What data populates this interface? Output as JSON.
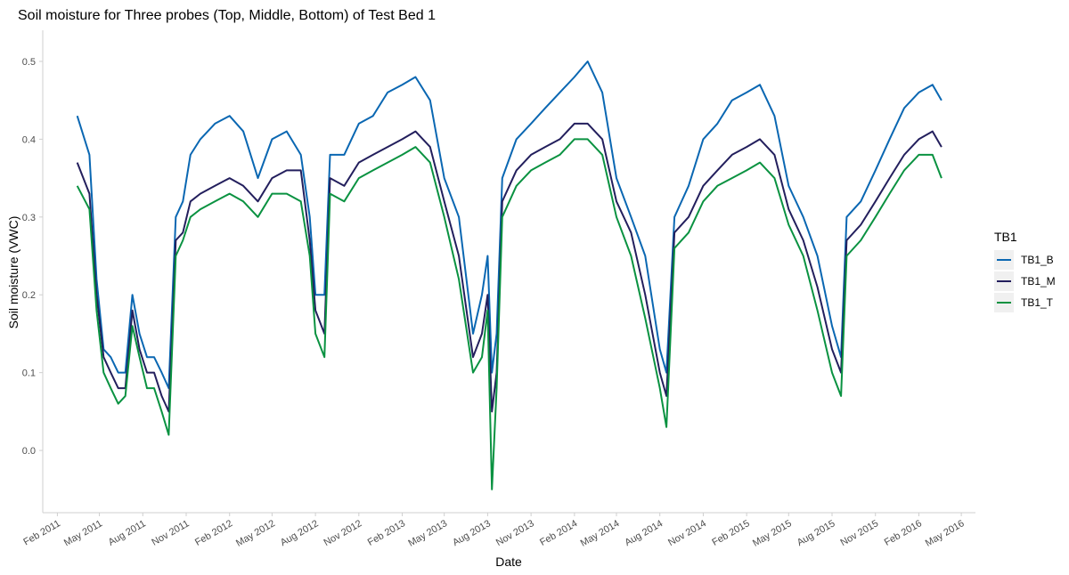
{
  "colors": {
    "TB1_B": "#0a67b2",
    "TB1_M": "#231f5d",
    "TB1_T": "#0a9241",
    "axis": "#cfcfcf",
    "legend_bg": "#f0f0f0"
  },
  "chart_data": {
    "type": "line",
    "title": "Soil moisture for Three probes (Top, Middle, Bottom) of Test Bed 1",
    "xlabel": "Date",
    "ylabel": "Soil moisture (VWC)",
    "xlim": [
      "2011-01-01",
      "2016-05-31"
    ],
    "ylim": [
      -0.08,
      0.54
    ],
    "y_ticks": [
      0.0,
      0.1,
      0.2,
      0.3,
      0.4,
      0.5
    ],
    "y_tick_labels": [
      "0.0",
      "0.1",
      "0.2",
      "0.3",
      "0.4",
      "0.5"
    ],
    "x_ticks": [
      "2011-02-01",
      "2011-05-01",
      "2011-08-01",
      "2011-11-01",
      "2012-02-01",
      "2012-05-01",
      "2012-08-01",
      "2012-11-01",
      "2013-02-01",
      "2013-05-01",
      "2013-08-01",
      "2013-11-01",
      "2014-02-01",
      "2014-05-01",
      "2014-08-01",
      "2014-11-01",
      "2015-02-01",
      "2015-05-01",
      "2015-08-01",
      "2015-11-01",
      "2016-02-01",
      "2016-05-01"
    ],
    "x_tick_labels": [
      "Feb 2011",
      "May 2011",
      "Aug 2011",
      "Nov 2011",
      "Feb 2012",
      "May 2012",
      "Aug 2012",
      "Nov 2012",
      "Feb 2013",
      "May 2013",
      "Aug 2013",
      "Nov 2013",
      "Feb 2014",
      "May 2014",
      "Aug 2014",
      "Nov 2014",
      "Feb 2015",
      "May 2015",
      "Aug 2015",
      "Nov 2015",
      "Feb 2016",
      "May 2016"
    ],
    "grid": false,
    "legend": {
      "title": "TB1",
      "position": "right",
      "entries": [
        "TB1_B",
        "TB1_M",
        "TB1_T"
      ]
    },
    "x": [
      "2011-03-15",
      "2011-04-10",
      "2011-04-25",
      "2011-05-10",
      "2011-05-25",
      "2011-06-10",
      "2011-06-25",
      "2011-07-10",
      "2011-07-25",
      "2011-08-10",
      "2011-08-25",
      "2011-09-10",
      "2011-09-25",
      "2011-10-10",
      "2011-10-25",
      "2011-11-10",
      "2011-12-01",
      "2012-01-01",
      "2012-02-01",
      "2012-03-01",
      "2012-04-01",
      "2012-05-01",
      "2012-06-01",
      "2012-07-01",
      "2012-07-20",
      "2012-08-01",
      "2012-08-20",
      "2012-09-01",
      "2012-10-01",
      "2012-11-01",
      "2012-12-01",
      "2013-01-01",
      "2013-02-01",
      "2013-03-01",
      "2013-04-01",
      "2013-05-01",
      "2013-06-01",
      "2013-07-01",
      "2013-07-20",
      "2013-08-01",
      "2013-08-10",
      "2013-08-20",
      "2013-09-01",
      "2013-10-01",
      "2013-11-01",
      "2013-12-01",
      "2014-01-01",
      "2014-02-01",
      "2014-03-01",
      "2014-04-01",
      "2014-05-01",
      "2014-06-01",
      "2014-07-01",
      "2014-08-01",
      "2014-08-15",
      "2014-09-01",
      "2014-10-01",
      "2014-11-01",
      "2014-12-01",
      "2015-01-01",
      "2015-02-01",
      "2015-03-01",
      "2015-04-01",
      "2015-05-01",
      "2015-06-01",
      "2015-07-01",
      "2015-08-01",
      "2015-08-20",
      "2015-09-01",
      "2015-10-01",
      "2015-11-01",
      "2015-12-01",
      "2016-01-01",
      "2016-02-01",
      "2016-03-01",
      "2016-03-20"
    ],
    "series": [
      {
        "name": "TB1_B",
        "values": [
          0.43,
          0.38,
          0.22,
          0.13,
          0.12,
          0.1,
          0.1,
          0.2,
          0.15,
          0.12,
          0.12,
          0.1,
          0.08,
          0.3,
          0.32,
          0.38,
          0.4,
          0.42,
          0.43,
          0.41,
          0.35,
          0.4,
          0.41,
          0.38,
          0.3,
          0.2,
          0.2,
          0.38,
          0.38,
          0.42,
          0.43,
          0.46,
          0.47,
          0.48,
          0.45,
          0.35,
          0.3,
          0.15,
          0.2,
          0.25,
          0.1,
          0.15,
          0.35,
          0.4,
          0.42,
          0.44,
          0.46,
          0.48,
          0.5,
          0.46,
          0.35,
          0.3,
          0.25,
          0.13,
          0.1,
          0.3,
          0.34,
          0.4,
          0.42,
          0.45,
          0.46,
          0.47,
          0.43,
          0.34,
          0.3,
          0.25,
          0.16,
          0.12,
          0.3,
          0.32,
          0.36,
          0.4,
          0.44,
          0.46,
          0.47,
          0.45
        ]
      },
      {
        "name": "TB1_M",
        "values": [
          0.37,
          0.33,
          0.2,
          0.12,
          0.1,
          0.08,
          0.08,
          0.18,
          0.13,
          0.1,
          0.1,
          0.07,
          0.05,
          0.27,
          0.28,
          0.32,
          0.33,
          0.34,
          0.35,
          0.34,
          0.32,
          0.35,
          0.36,
          0.36,
          0.27,
          0.18,
          0.15,
          0.35,
          0.34,
          0.37,
          0.38,
          0.39,
          0.4,
          0.41,
          0.39,
          0.32,
          0.25,
          0.12,
          0.15,
          0.2,
          0.05,
          0.1,
          0.32,
          0.36,
          0.38,
          0.39,
          0.4,
          0.42,
          0.42,
          0.4,
          0.32,
          0.28,
          0.2,
          0.1,
          0.07,
          0.28,
          0.3,
          0.34,
          0.36,
          0.38,
          0.39,
          0.4,
          0.38,
          0.31,
          0.27,
          0.21,
          0.13,
          0.1,
          0.27,
          0.29,
          0.32,
          0.35,
          0.38,
          0.4,
          0.41,
          0.39
        ]
      },
      {
        "name": "TB1_T",
        "values": [
          0.34,
          0.31,
          0.18,
          0.1,
          0.08,
          0.06,
          0.07,
          0.16,
          0.12,
          0.08,
          0.08,
          0.05,
          0.02,
          0.25,
          0.27,
          0.3,
          0.31,
          0.32,
          0.33,
          0.32,
          0.3,
          0.33,
          0.33,
          0.32,
          0.25,
          0.15,
          0.12,
          0.33,
          0.32,
          0.35,
          0.36,
          0.37,
          0.38,
          0.39,
          0.37,
          0.3,
          0.22,
          0.1,
          0.12,
          0.18,
          -0.05,
          0.08,
          0.3,
          0.34,
          0.36,
          0.37,
          0.38,
          0.4,
          0.4,
          0.38,
          0.3,
          0.25,
          0.17,
          0.08,
          0.03,
          0.26,
          0.28,
          0.32,
          0.34,
          0.35,
          0.36,
          0.37,
          0.35,
          0.29,
          0.25,
          0.18,
          0.1,
          0.07,
          0.25,
          0.27,
          0.3,
          0.33,
          0.36,
          0.38,
          0.38,
          0.35
        ]
      }
    ]
  }
}
